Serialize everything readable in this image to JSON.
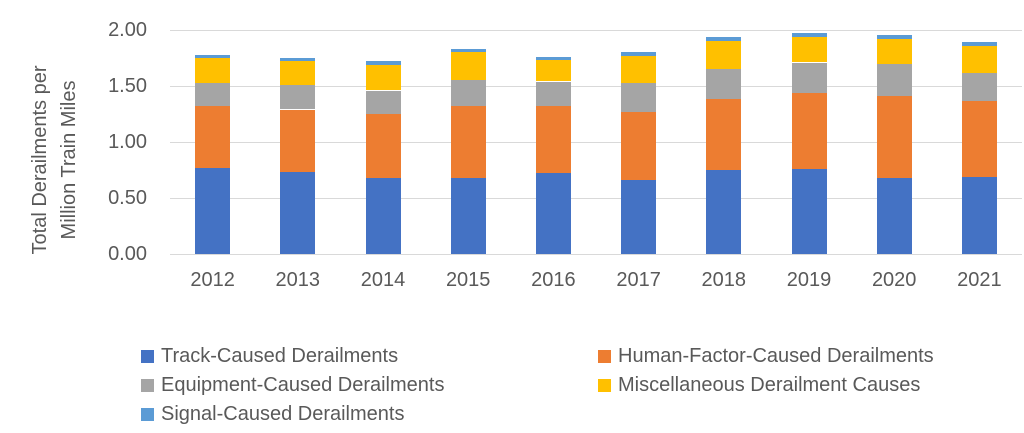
{
  "chart_data": {
    "type": "bar",
    "stacked": true,
    "title": "",
    "xlabel": "",
    "ylabel": "Total Derailments per Million Train Miles",
    "ylabel_lines": [
      "Total Derailments per",
      "Million Train Miles"
    ],
    "ylim": [
      0,
      2.0
    ],
    "ytick_values": [
      0,
      0.5,
      1.0,
      1.5,
      2.0
    ],
    "ytick_labels": [
      "0.00",
      "0.50",
      "1.00",
      "1.50",
      "2.00"
    ],
    "grid": true,
    "legend_position": "bottom-two-columns",
    "categories": [
      "2012",
      "2013",
      "2014",
      "2015",
      "2016",
      "2017",
      "2018",
      "2019",
      "2020",
      "2021"
    ],
    "series": [
      {
        "name": "Track-Caused Derailments",
        "color": "#4472C4",
        "legend_col": 0,
        "legend_row": 0,
        "values": [
          0.77,
          0.73,
          0.68,
          0.68,
          0.72,
          0.66,
          0.75,
          0.76,
          0.68,
          0.69
        ]
      },
      {
        "name": "Human-Factor-Caused Derailments",
        "color": "#ED7D31",
        "legend_col": 1,
        "legend_row": 0,
        "values": [
          0.55,
          0.56,
          0.57,
          0.64,
          0.6,
          0.61,
          0.63,
          0.68,
          0.73,
          0.68
        ]
      },
      {
        "name": "Equipment-Caused Derailments",
        "color": "#A5A5A5",
        "legend_col": 0,
        "legend_row": 1,
        "values": [
          0.21,
          0.22,
          0.21,
          0.23,
          0.22,
          0.26,
          0.27,
          0.27,
          0.29,
          0.25
        ]
      },
      {
        "name": "Miscellaneous Derailment Causes",
        "color": "#FFC000",
        "legend_col": 1,
        "legend_row": 1,
        "values": [
          0.22,
          0.21,
          0.23,
          0.25,
          0.19,
          0.24,
          0.25,
          0.23,
          0.22,
          0.24
        ]
      },
      {
        "name": "Signal-Caused Derailments",
        "color": "#5B9BD5",
        "legend_col": 0,
        "legend_row": 2,
        "values": [
          0.03,
          0.03,
          0.03,
          0.03,
          0.03,
          0.03,
          0.04,
          0.03,
          0.04,
          0.03
        ]
      }
    ]
  },
  "colors": {
    "gridline": "#d9d9d9",
    "axis_text": "#595959",
    "background": "#ffffff"
  }
}
